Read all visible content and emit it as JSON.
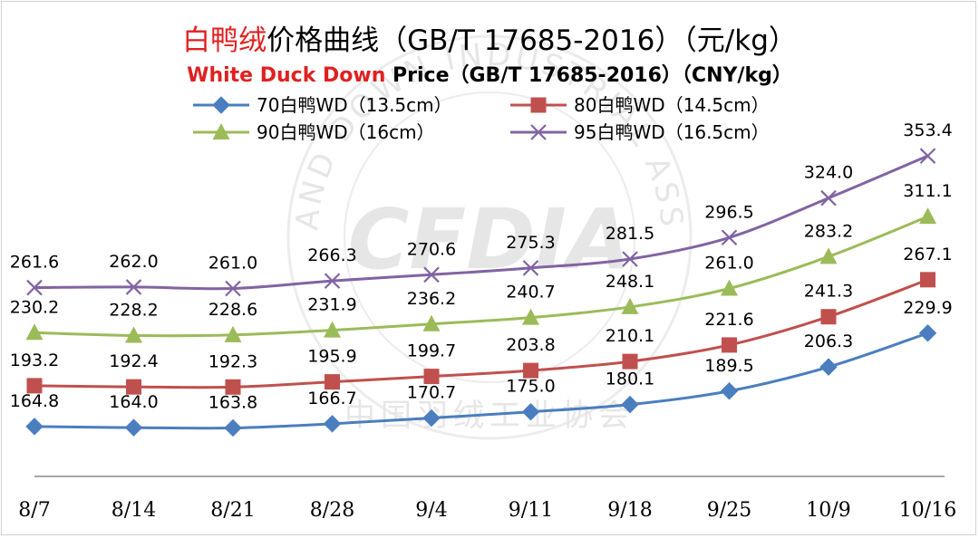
{
  "chart_data": {
    "type": "line",
    "title": {
      "part1_red": "白鸭绒",
      "part2": "价格曲线（GB/T 17685-2016）（元/kg）"
    },
    "subtitle": {
      "part1_red": "White Duck Down",
      "part2": " Price（GB/T 17685-2016）（CNY/kg）"
    },
    "categories": [
      "8/7",
      "8/14",
      "8/21",
      "8/28",
      "9/4",
      "9/11",
      "9/18",
      "9/25",
      "10/9",
      "10/16"
    ],
    "ylim": [
      130,
      380
    ],
    "grid": false,
    "legend_position": "top",
    "series": [
      {
        "name": "70白鸭WD（13.5cm）",
        "color": "#4a7ebf",
        "marker": "diamond",
        "values": [
          164.8,
          164.0,
          163.8,
          166.7,
          170.7,
          175.0,
          180.1,
          189.5,
          206.3,
          229.9
        ]
      },
      {
        "name": "80白鸭WD（14.5cm）",
        "color": "#c0504d",
        "marker": "square",
        "values": [
          193.2,
          192.4,
          192.3,
          195.9,
          199.7,
          203.8,
          210.1,
          221.6,
          241.3,
          267.1
        ]
      },
      {
        "name": "90白鸭WD（16cm）",
        "color": "#9bbb59",
        "marker": "triangle",
        "values": [
          230.2,
          228.2,
          228.6,
          231.9,
          236.2,
          240.7,
          248.1,
          261.0,
          283.2,
          311.1
        ]
      },
      {
        "name": "95白鸭WD（16.5cm）",
        "color": "#8064a2",
        "marker": "x",
        "values": [
          261.6,
          262.0,
          261.0,
          266.3,
          270.6,
          275.3,
          281.5,
          296.5,
          324.0,
          353.4
        ]
      }
    ],
    "title_color_red": "#e02020"
  },
  "watermark": {
    "logo": "CFDIA",
    "ring_text": "FEATHER AND DOWN INDUSTRIAL ASSOCIATION",
    "cn_text": "中国羽绒工业协会"
  }
}
